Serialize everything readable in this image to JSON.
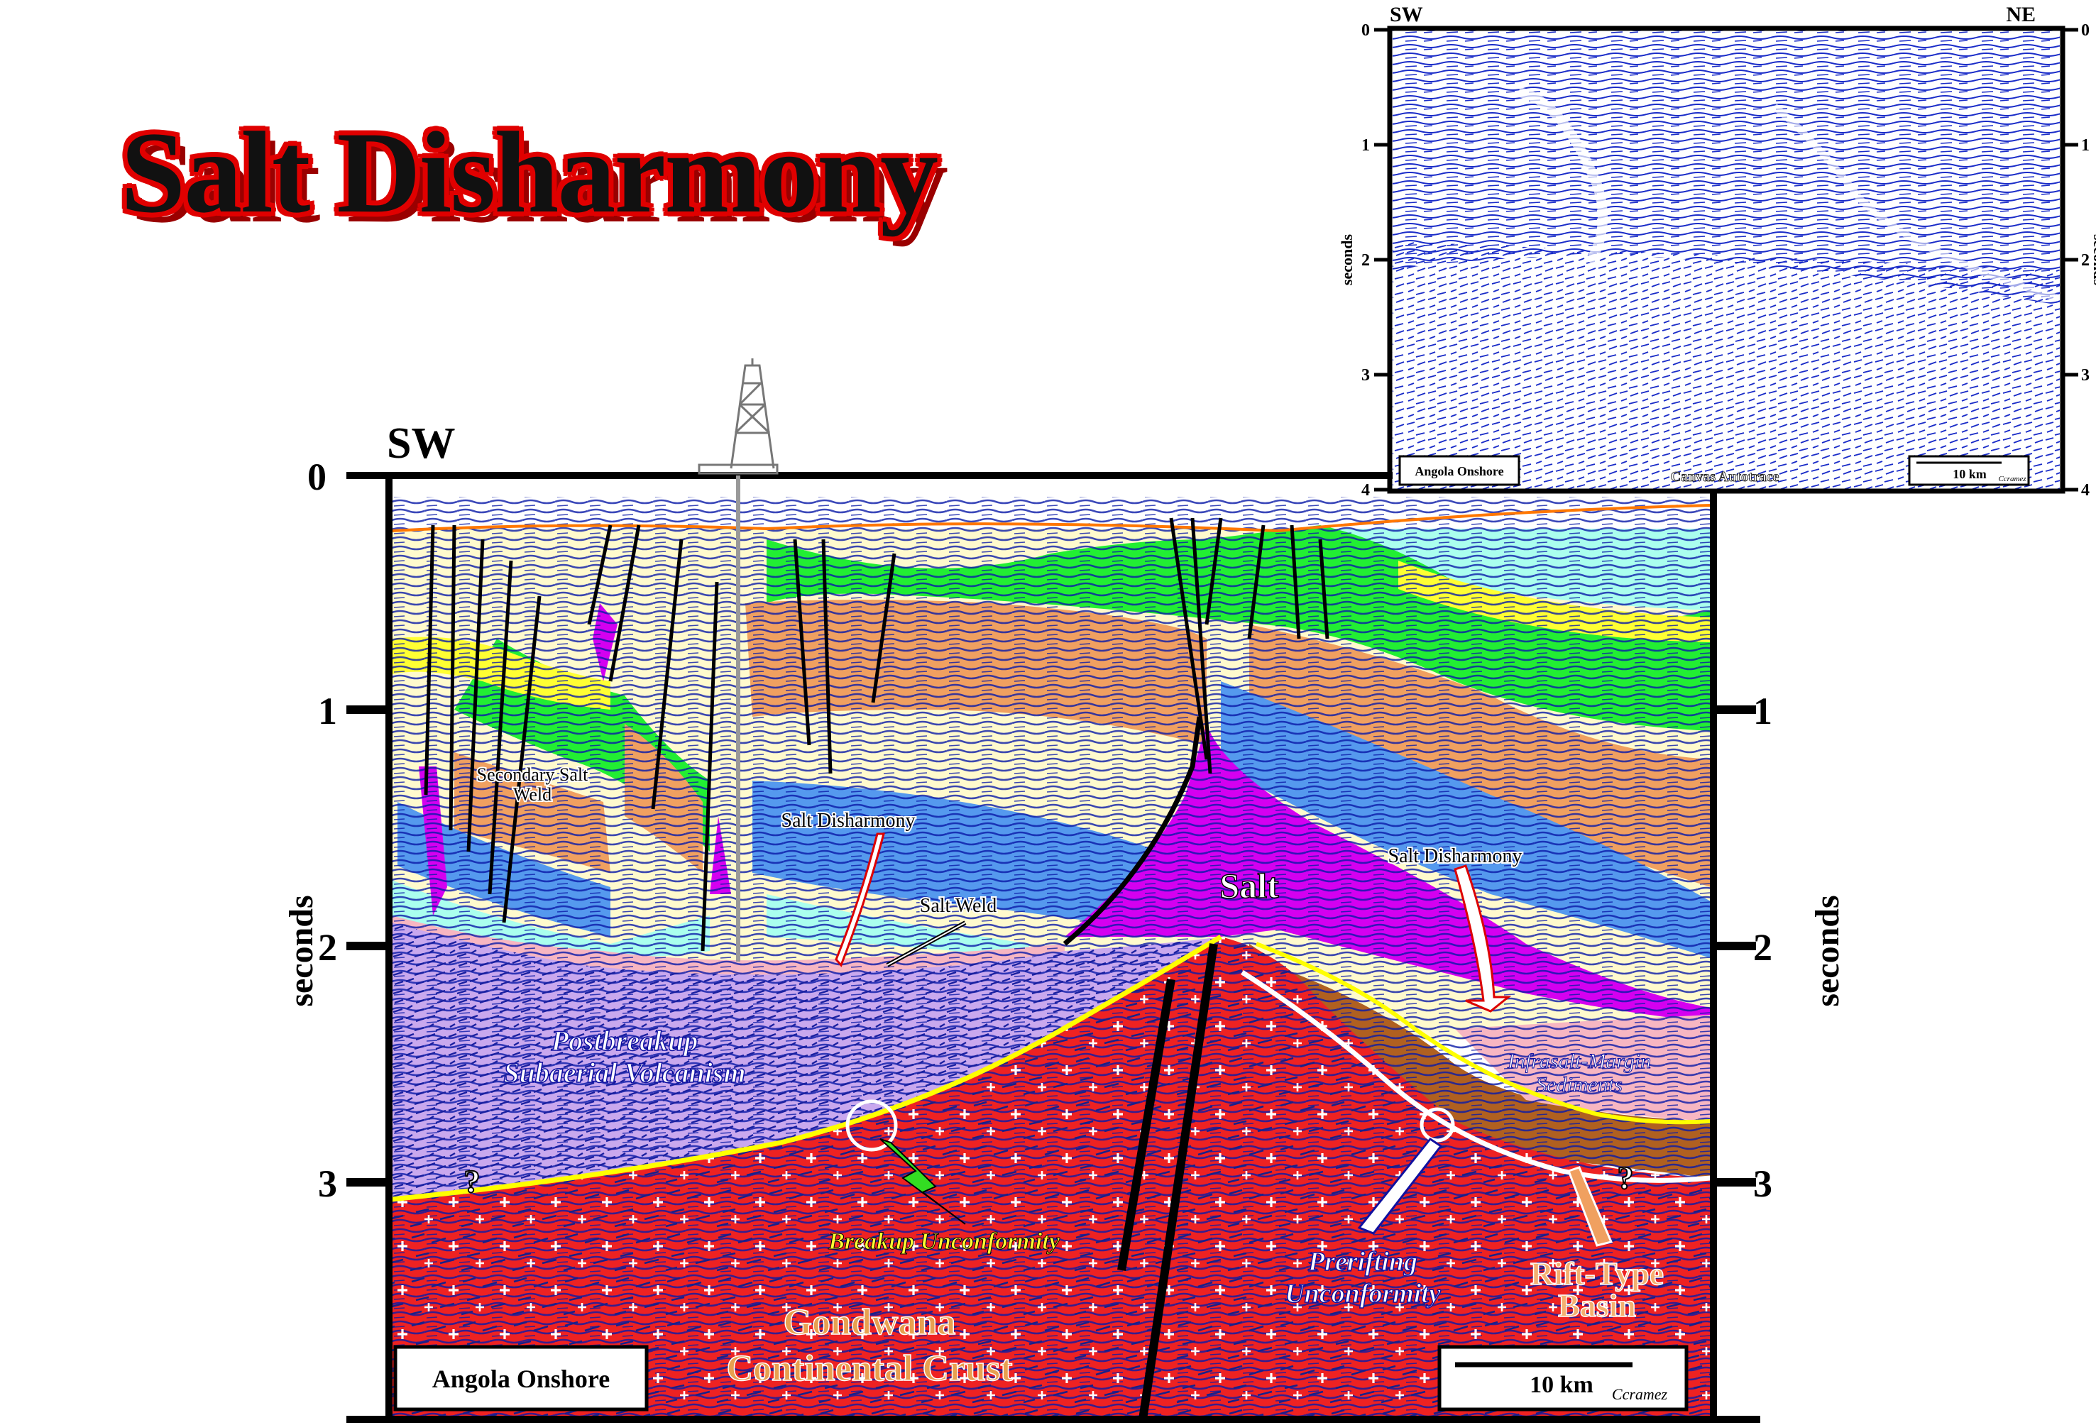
{
  "title": "Salt Disharmony",
  "colors": {
    "salt": "#d400f0",
    "crust": "#ee2222",
    "volcanism": "#c9a8ee",
    "green": "#22ee33",
    "yellow": "#ffff33",
    "orange": "#f0a060",
    "blue": "#5599ee",
    "cream": "#fffacd",
    "cyan": "#aaffee",
    "infrasalt": "#b06020",
    "reflector": "#0a1aa8"
  },
  "main_section": {
    "orientation_left": "SW",
    "axis_unit": "seconds",
    "ticks": [
      "0",
      "1",
      "2",
      "3"
    ],
    "labels": {
      "salt": "Salt",
      "secondary_weld_1": "Secondary Salt",
      "secondary_weld_2": "Weld",
      "salt_disharmony_left": "Salt Disharmony",
      "salt_weld": "Salt Weld",
      "salt_disharmony_right": "Salt Disharmony",
      "volcanism_1": "Postbreakup",
      "volcanism_2": "Subaerial Volcanism",
      "infrasalt_1": "Infrasalt-Margin",
      "infrasalt_2": "Sediments",
      "breakup": "Breakup Unconformity",
      "prerifting_1": "Prerifting",
      "prerifting_2": "Unconformity",
      "rift_1": "Rift-Type",
      "rift_2": "Basin",
      "crust_1": "Gondwana",
      "crust_2": "Continental Crust",
      "question": "?"
    },
    "location_box": "Angola Onshore",
    "scale_bar": "10 km",
    "credit": "Ccramez"
  },
  "inset": {
    "orientation_left": "SW",
    "orientation_right": "NE",
    "axis_unit": "seconds",
    "ticks": [
      "0",
      "1",
      "2",
      "3",
      "4"
    ],
    "location_box": "Angola Onshore",
    "caption": "Canvas Autotrace",
    "scale_bar": "10 km",
    "credit": "Ccramez"
  }
}
